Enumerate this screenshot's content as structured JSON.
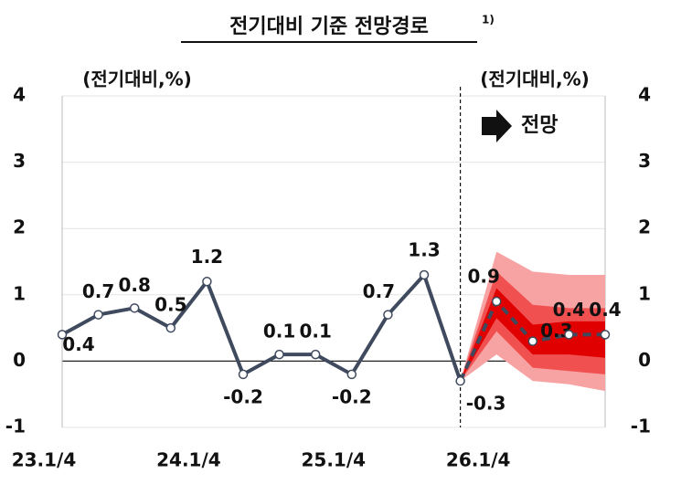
{
  "chart_data": {
    "type": "line",
    "title": "전기대비 기준 전망경로",
    "title_note": "1)",
    "y_label": "(전기대비,%)",
    "y2_label": "(전기대비,%)",
    "annotation": "전망",
    "categories": [
      "23.1/4",
      null,
      null,
      null,
      "24.1/4",
      null,
      null,
      null,
      "25.1/4",
      null,
      null,
      null,
      "26.1/4",
      null,
      null,
      null
    ],
    "series": [
      {
        "color": "#3f4a5e",
        "style": "solid",
        "values": [
          0.4,
          0.7,
          0.8,
          0.5,
          1.2,
          -0.2,
          0.1,
          0.1,
          -0.2,
          0.7,
          1.3,
          -0.3,
          null,
          null,
          null,
          null
        ]
      },
      {
        "color": "#3f4a5e",
        "style": "dashed",
        "axis": "y2",
        "values": [
          null,
          null,
          null,
          null,
          null,
          null,
          null,
          null,
          null,
          null,
          null,
          -0.3,
          0.9,
          0.3,
          0.4,
          0.4
        ]
      }
    ],
    "bands": [
      {
        "color": "#f8a3a3",
        "upper": [
          null,
          null,
          null,
          null,
          null,
          null,
          null,
          null,
          null,
          null,
          null,
          -0.3,
          1.65,
          1.35,
          1.3,
          1.3
        ],
        "lower": [
          null,
          null,
          null,
          null,
          null,
          null,
          null,
          null,
          null,
          null,
          null,
          -0.3,
          0.1,
          -0.3,
          -0.35,
          -0.45
        ]
      },
      {
        "color": "#f05050",
        "upper": [
          null,
          null,
          null,
          null,
          null,
          null,
          null,
          null,
          null,
          null,
          null,
          -0.3,
          1.35,
          0.85,
          0.8,
          0.8
        ],
        "lower": [
          null,
          null,
          null,
          null,
          null,
          null,
          null,
          null,
          null,
          null,
          null,
          -0.3,
          0.45,
          -0.1,
          -0.15,
          -0.2
        ]
      },
      {
        "color": "#e00000",
        "upper": [
          null,
          null,
          null,
          null,
          null,
          null,
          null,
          null,
          null,
          null,
          null,
          -0.3,
          1.1,
          0.55,
          0.6,
          0.6
        ],
        "lower": [
          null,
          null,
          null,
          null,
          null,
          null,
          null,
          null,
          null,
          null,
          null,
          -0.3,
          0.65,
          0.1,
          0.1,
          0.05
        ]
      }
    ],
    "forecast_start": 11,
    "ylim": [
      -1,
      4
    ],
    "yticks": [
      -1,
      0,
      1,
      2,
      3,
      4
    ],
    "y2lim": [
      -1,
      4
    ],
    "y2ticks": [
      -1,
      0,
      1,
      2,
      3,
      4
    ],
    "grid": true
  }
}
